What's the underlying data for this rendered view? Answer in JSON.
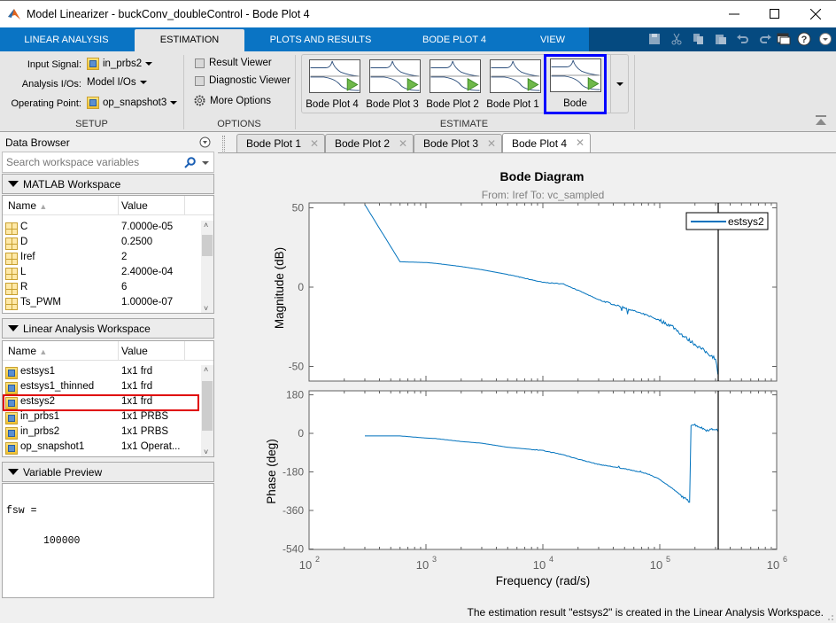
{
  "window": {
    "title": "Model Linearizer - buckConv_doubleControl - Bode Plot 4",
    "controls": [
      "minimize",
      "maximize",
      "close"
    ]
  },
  "ribbon_tabs": [
    {
      "label": "LINEAR ANALYSIS",
      "active": false
    },
    {
      "label": "ESTIMATION",
      "active": true
    },
    {
      "label": "PLOTS AND RESULTS",
      "active": false
    },
    {
      "label": "BODE PLOT 4",
      "active": false
    },
    {
      "label": "VIEW",
      "active": false
    }
  ],
  "quick_access": [
    "save-icon",
    "cut-icon",
    "copy-icon",
    "paste-icon",
    "undo-icon",
    "redo-icon",
    "layout-icon",
    "help-icon",
    "options-icon"
  ],
  "setup": {
    "section_label": "SETUP",
    "input_signal_label": "Input Signal:",
    "input_signal_value": "in_prbs2",
    "analysis_ios_label": "Analysis I/Os:",
    "analysis_ios_value": "Model I/Os",
    "operating_point_label": "Operating Point:",
    "operating_point_value": "op_snapshot3"
  },
  "options": {
    "section_label": "OPTIONS",
    "result_viewer": "Result Viewer",
    "diagnostic_viewer": "Diagnostic Viewer",
    "more_options": "More Options"
  },
  "estimate": {
    "section_label": "ESTIMATE",
    "gallery": [
      {
        "label": "Bode Plot 4",
        "selected": false
      },
      {
        "label": "Bode Plot 3",
        "selected": false
      },
      {
        "label": "Bode Plot 2",
        "selected": false
      },
      {
        "label": "Bode Plot 1",
        "selected": false
      },
      {
        "label": "Bode",
        "selected": true
      }
    ],
    "highlight_color": "#0000ff"
  },
  "data_browser": {
    "title": "Data Browser",
    "search_placeholder": "Search workspace variables",
    "matlab_workspace": {
      "title": "MATLAB Workspace",
      "columns": [
        "Name",
        "Value"
      ],
      "rows": [
        {
          "name": "C",
          "value": "7.0000e-05"
        },
        {
          "name": "D",
          "value": "0.2500"
        },
        {
          "name": "Iref",
          "value": "2"
        },
        {
          "name": "L",
          "value": "2.4000e-04"
        },
        {
          "name": "R",
          "value": "6"
        },
        {
          "name": "Ts_PWM",
          "value": "1.0000e-07"
        }
      ]
    },
    "linear_analysis_workspace": {
      "title": "Linear Analysis Workspace",
      "columns": [
        "Name",
        "Value"
      ],
      "rows": [
        {
          "name": "estsys1",
          "value": "1x1 frd"
        },
        {
          "name": "estsys1_thinned",
          "value": "1x1 frd"
        },
        {
          "name": "estsys2",
          "value": "1x1 frd",
          "highlighted": true
        },
        {
          "name": "in_prbs1",
          "value": "1x1 PRBS"
        },
        {
          "name": "in_prbs2",
          "value": "1x1 PRBS"
        },
        {
          "name": "op_snapshot1",
          "value": "1x1 Operat..."
        }
      ],
      "highlight_color": "#e00000"
    },
    "variable_preview": {
      "title": "Variable Preview",
      "line1": "fsw =",
      "line2": "100000"
    }
  },
  "document_tabs": [
    {
      "label": "Bode Plot 1",
      "active": false
    },
    {
      "label": "Bode Plot 2",
      "active": false
    },
    {
      "label": "Bode Plot 3",
      "active": false
    },
    {
      "label": "Bode Plot 4",
      "active": true
    }
  ],
  "chart_data": {
    "type": "line",
    "title": "Bode Diagram",
    "subtitle": "From: Iref  To: vc_sampled",
    "xlabel": "Frequency  (rad/s)",
    "xscale": "log",
    "xlim": [
      100,
      1000000
    ],
    "xticks": [
      "10^2",
      "10^3",
      "10^4",
      "10^5",
      "10^6"
    ],
    "nyquist_line_x": 314159,
    "legend": {
      "entries": [
        "estsys2"
      ],
      "position": "northeast"
    },
    "series_color": "#0072bd",
    "subplots": [
      {
        "name": "magnitude",
        "ylabel": "Magnitude (dB)",
        "ylim": [
          -59,
          53
        ],
        "yticks": [
          50,
          0,
          -50
        ],
        "series": [
          {
            "name": "estsys2",
            "x": [
              300,
              600,
              1000,
              1200,
              2000,
              3000,
              5000,
              10000,
              15000,
              20000,
              30000,
              50000,
              80000,
              100000,
              130000,
              160000,
              200000,
              250000,
              300000,
              314000
            ],
            "y": [
              52,
              16,
              15.5,
              15,
              13,
              11,
              8,
              3,
              2,
              -2,
              -8,
              -13,
              -18,
              -21,
              -25,
              -31,
              -36,
              -41,
              -45,
              -55
            ]
          }
        ]
      },
      {
        "name": "phase",
        "ylabel": "Phase (deg)",
        "ylim": [
          -540,
          180
        ],
        "yticks": [
          180,
          0,
          -180,
          -360,
          -540
        ],
        "series": [
          {
            "name": "estsys2",
            "x": [
              300,
              600,
              1000,
              1200,
              2000,
              3000,
              5000,
              10000,
              15000,
              20000,
              30000,
              50000,
              80000,
              100000,
              130000,
              160000,
              180000,
              185000,
              200000,
              250000,
              300000,
              314000
            ],
            "y": [
              -12,
              -12,
              -22,
              -24,
              -38,
              -46,
              -65,
              -80,
              -100,
              -120,
              -145,
              -165,
              -190,
              -215,
              -260,
              -300,
              -320,
              40,
              40,
              15,
              20,
              10
            ]
          }
        ]
      }
    ]
  },
  "status_bar": {
    "message": "The estimation result \"estsys2\" is created in the Linear Analysis Workspace."
  }
}
